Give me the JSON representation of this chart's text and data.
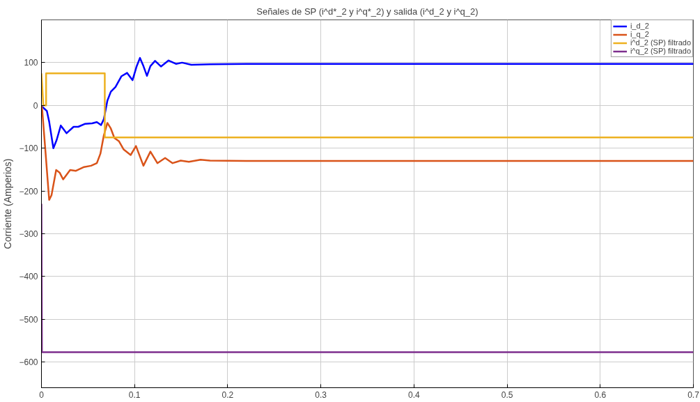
{
  "chart_data": {
    "type": "line",
    "title": "Señales de SP (i^d*_2 y i^q*_2) y salida (i^d_2 y i^q_2)",
    "ylabel": "Corriente (Amperios)",
    "xlim": [
      0,
      0.7
    ],
    "ylim": [
      -660,
      200
    ],
    "xticks": [
      0,
      0.1,
      0.2,
      0.3,
      0.4,
      0.5,
      0.6,
      0.7
    ],
    "yticks": [
      -600,
      -500,
      -400,
      -300,
      -200,
      -100,
      0,
      100
    ],
    "grid": true,
    "legend": "top right",
    "line_style": "solid",
    "series": [
      {
        "name": "i_d_2",
        "color": "#0000ff",
        "x": [
          0,
          0.0008,
          0.0058,
          0.0083,
          0.0128,
          0.0163,
          0.0208,
          0.027,
          0.0345,
          0.0395,
          0.047,
          0.0545,
          0.0595,
          0.064,
          0.067,
          0.0708,
          0.0745,
          0.0795,
          0.0858,
          0.092,
          0.0978,
          0.102,
          0.1058,
          0.1095,
          0.1133,
          0.117,
          0.122,
          0.1283,
          0.1365,
          0.1445,
          0.151,
          0.161,
          0.181,
          0.22,
          0.7
        ],
        "values": [
          0,
          -3,
          -13,
          -38,
          -100,
          -81,
          -47,
          -65,
          -50,
          -50,
          -43,
          -42,
          -39,
          -46,
          -32,
          11,
          32,
          43,
          68,
          76,
          59,
          90,
          111,
          92,
          69,
          92,
          104,
          91,
          105,
          97,
          100,
          95,
          96,
          97,
          97
        ]
      },
      {
        "name": "i_q_2",
        "color": "#d95319",
        "x": [
          0,
          0.0008,
          0.0045,
          0.0083,
          0.0108,
          0.0158,
          0.0195,
          0.0233,
          0.0308,
          0.037,
          0.0458,
          0.0533,
          0.0595,
          0.0633,
          0.067,
          0.0708,
          0.0745,
          0.0783,
          0.0833,
          0.0883,
          0.0958,
          0.1015,
          0.1095,
          0.117,
          0.1245,
          0.1328,
          0.1408,
          0.1495,
          0.1583,
          0.1708,
          0.181,
          0.22,
          0.7
        ],
        "values": [
          0,
          -10,
          -113,
          -221,
          -210,
          -151,
          -157,
          -173,
          -151,
          -153,
          -144,
          -141,
          -135,
          -113,
          -70,
          -41,
          -54,
          -76,
          -84,
          -103,
          -116,
          -95,
          -141,
          -108,
          -135,
          -123,
          -135,
          -129,
          -132,
          -127,
          -129,
          -130,
          -130
        ]
      },
      {
        "name": "i^d_2 (SP) filtrado",
        "color": "#edb120",
        "x": [
          0,
          0.0007,
          0.002,
          0.005,
          0.005,
          0.068,
          0.068,
          0.7
        ],
        "values": [
          75,
          50,
          0,
          0,
          75,
          75,
          -75,
          -75
        ]
      },
      {
        "name": "i^q_2 (SP) filtrado",
        "color": "#7e2f8e",
        "x": [
          0,
          0.0005,
          0.7
        ],
        "values": [
          -230,
          -577,
          -577
        ]
      }
    ]
  }
}
